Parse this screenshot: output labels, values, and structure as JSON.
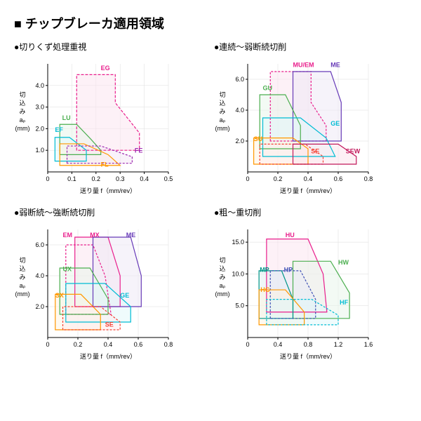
{
  "main_title": "■ チップブレーカ適用領域",
  "xlabel": "送り量 f（mm/rev）",
  "ylabel_lines": [
    "切",
    "込",
    "み",
    "aₚ",
    "(mm)"
  ],
  "charts": [
    {
      "title": "●切りくず処理重視",
      "xlim": [
        0,
        0.5
      ],
      "xticks": [
        0,
        0.1,
        0.2,
        0.3,
        0.4,
        0.5
      ],
      "ylim": [
        0,
        5
      ],
      "yticks": [
        1.0,
        2.0,
        3.0,
        4.0
      ],
      "regions": [
        {
          "label": "EG",
          "color": "#e91e8c",
          "fill": "#fce4ef",
          "dash": "4,2",
          "poly": [
            [
              0.12,
              1.0
            ],
            [
              0.12,
              4.5
            ],
            [
              0.28,
              4.5
            ],
            [
              0.28,
              3.2
            ],
            [
              0.38,
              1.8
            ],
            [
              0.38,
              1.0
            ]
          ],
          "lx": 0.22,
          "ly": 4.7
        },
        {
          "label": "LU",
          "color": "#4caf50",
          "fill": "#e8f5e9",
          "dash": "",
          "poly": [
            [
              0.05,
              0.8
            ],
            [
              0.05,
              2.2
            ],
            [
              0.12,
              2.2
            ],
            [
              0.18,
              1.5
            ],
            [
              0.22,
              1.0
            ],
            [
              0.22,
              0.8
            ]
          ],
          "lx": 0.06,
          "ly": 2.4
        },
        {
          "label": "EF",
          "color": "#00bcd4",
          "fill": "#e0f7fa",
          "dash": "",
          "poly": [
            [
              0.03,
              0.5
            ],
            [
              0.03,
              1.6
            ],
            [
              0.09,
              1.6
            ],
            [
              0.16,
              1.0
            ],
            [
              0.16,
              0.5
            ]
          ],
          "lx": 0.03,
          "ly": 1.85
        },
        {
          "label": "FL",
          "color": "#ff9800",
          "fill": "#fff3e0",
          "dash": "",
          "poly": [
            [
              0.05,
              0.3
            ],
            [
              0.05,
              1.3
            ],
            [
              0.15,
              1.3
            ],
            [
              0.25,
              0.8
            ],
            [
              0.3,
              0.3
            ]
          ],
          "lx": 0.22,
          "ly": 0.25
        },
        {
          "label": "FE",
          "color": "#9c27b0",
          "fill": "#f3e5f5",
          "dash": "3,2",
          "poly": [
            [
              0.08,
              0.4
            ],
            [
              0.08,
              1.2
            ],
            [
              0.22,
              1.2
            ],
            [
              0.35,
              0.7
            ],
            [
              0.35,
              0.4
            ]
          ],
          "lx": 0.36,
          "ly": 0.9
        }
      ]
    },
    {
      "title": "●連続～弱断続切削",
      "xlim": [
        0,
        0.8
      ],
      "xticks": [
        0,
        0.2,
        0.4,
        0.6,
        0.8
      ],
      "ylim": [
        0,
        7
      ],
      "yticks": [
        2.0,
        4.0,
        6.0
      ],
      "regions": [
        {
          "label": "MU/EM",
          "color": "#e91e8c",
          "fill": "#fce4ef",
          "dash": "3,2",
          "poly": [
            [
              0.15,
              2.0
            ],
            [
              0.15,
              6.5
            ],
            [
              0.42,
              6.5
            ],
            [
              0.42,
              4.5
            ],
            [
              0.52,
              3.0
            ],
            [
              0.52,
              2.0
            ]
          ],
          "lx": 0.3,
          "ly": 6.8
        },
        {
          "label": "ME",
          "color": "#673ab7",
          "fill": "#ede7f6",
          "dash": "",
          "poly": [
            [
              0.3,
              2.0
            ],
            [
              0.3,
              6.5
            ],
            [
              0.55,
              6.5
            ],
            [
              0.62,
              4.5
            ],
            [
              0.62,
              2.0
            ]
          ],
          "lx": 0.55,
          "ly": 6.8
        },
        {
          "label": "GU",
          "color": "#4caf50",
          "fill": "#e8f5e9",
          "dash": "",
          "poly": [
            [
              0.08,
              1.5
            ],
            [
              0.08,
              5.0
            ],
            [
              0.25,
              5.0
            ],
            [
              0.35,
              3.0
            ],
            [
              0.35,
              1.5
            ]
          ],
          "lx": 0.1,
          "ly": 5.3
        },
        {
          "label": "GE",
          "color": "#00bcd4",
          "fill": "#e0f7fa",
          "dash": "",
          "poly": [
            [
              0.1,
              1.0
            ],
            [
              0.1,
              3.5
            ],
            [
              0.35,
              3.5
            ],
            [
              0.52,
              2.2
            ],
            [
              0.58,
              1.0
            ]
          ],
          "lx": 0.55,
          "ly": 3.0
        },
        {
          "label": "SU",
          "color": "#ff9800",
          "fill": "#fff3e0",
          "dash": "",
          "poly": [
            [
              0.04,
              0.5
            ],
            [
              0.04,
              2.2
            ],
            [
              0.3,
              2.2
            ],
            [
              0.4,
              1.5
            ],
            [
              0.4,
              0.5
            ]
          ],
          "lx": 0.04,
          "ly": 2.0
        },
        {
          "label": "SE",
          "color": "#f44336",
          "fill": "#ffebee",
          "dash": "3,2",
          "poly": [
            [
              0.08,
              0.5
            ],
            [
              0.08,
              1.8
            ],
            [
              0.38,
              1.8
            ],
            [
              0.5,
              1.0
            ],
            [
              0.5,
              0.5
            ]
          ],
          "lx": 0.42,
          "ly": 1.2
        },
        {
          "label": "SEW",
          "color": "#c2185b",
          "fill": "#fce4ec",
          "dash": "",
          "poly": [
            [
              0.3,
              0.5
            ],
            [
              0.3,
              1.8
            ],
            [
              0.6,
              1.8
            ],
            [
              0.72,
              1.0
            ],
            [
              0.72,
              0.5
            ]
          ],
          "lx": 0.65,
          "ly": 1.2
        }
      ]
    },
    {
      "title": "●弱断続～強断続切削",
      "xlim": [
        0,
        0.8
      ],
      "xticks": [
        0,
        0.2,
        0.4,
        0.6,
        0.8
      ],
      "ylim": [
        0,
        7
      ],
      "yticks": [
        2.0,
        4.0,
        6.0
      ],
      "regions": [
        {
          "label": "EM",
          "color": "#e91e8c",
          "fill": "none",
          "dash": "3,2",
          "poly": [
            [
              0.12,
              1.5
            ],
            [
              0.12,
              6.0
            ],
            [
              0.3,
              6.0
            ],
            [
              0.38,
              4.0
            ],
            [
              0.42,
              1.5
            ]
          ],
          "lx": 0.1,
          "ly": 6.5
        },
        {
          "label": "MX",
          "color": "#e91e8c",
          "fill": "#fce4ef",
          "dash": "",
          "poly": [
            [
              0.18,
              2.0
            ],
            [
              0.18,
              6.5
            ],
            [
              0.4,
              6.5
            ],
            [
              0.48,
              4.0
            ],
            [
              0.48,
              2.0
            ]
          ],
          "lx": 0.28,
          "ly": 6.5
        },
        {
          "label": "ME",
          "color": "#673ab7",
          "fill": "#ede7f6",
          "dash": "",
          "poly": [
            [
              0.3,
              2.0
            ],
            [
              0.3,
              6.5
            ],
            [
              0.55,
              6.5
            ],
            [
              0.62,
              4.0
            ],
            [
              0.62,
              2.0
            ]
          ],
          "lx": 0.52,
          "ly": 6.5
        },
        {
          "label": "UX",
          "color": "#4caf50",
          "fill": "#e8f5e9",
          "dash": "",
          "poly": [
            [
              0.08,
              1.5
            ],
            [
              0.08,
              4.5
            ],
            [
              0.28,
              4.5
            ],
            [
              0.4,
              2.5
            ],
            [
              0.4,
              1.5
            ]
          ],
          "lx": 0.1,
          "ly": 4.3
        },
        {
          "label": "GE",
          "color": "#00bcd4",
          "fill": "#e0f7fa",
          "dash": "",
          "poly": [
            [
              0.12,
              1.0
            ],
            [
              0.12,
              3.5
            ],
            [
              0.38,
              3.5
            ],
            [
              0.55,
              2.0
            ],
            [
              0.55,
              1.0
            ]
          ],
          "lx": 0.48,
          "ly": 2.6
        },
        {
          "label": "SX",
          "color": "#ff9800",
          "fill": "#fff3e0",
          "dash": "",
          "poly": [
            [
              0.05,
              0.5
            ],
            [
              0.05,
              2.8
            ],
            [
              0.22,
              2.8
            ],
            [
              0.35,
              1.5
            ],
            [
              0.35,
              0.5
            ]
          ],
          "lx": 0.05,
          "ly": 2.6
        },
        {
          "label": "SE",
          "color": "#f44336",
          "fill": "#ffebee",
          "dash": "3,2",
          "poly": [
            [
              0.1,
              0.5
            ],
            [
              0.1,
              2.0
            ],
            [
              0.35,
              2.0
            ],
            [
              0.48,
              1.0
            ],
            [
              0.48,
              0.5
            ]
          ],
          "lx": 0.38,
          "ly": 0.7
        }
      ]
    },
    {
      "title": "●粗～重切削",
      "xlim": [
        0,
        1.6
      ],
      "xticks": [
        0,
        0.4,
        0.8,
        1.2,
        1.6
      ],
      "ylim": [
        0,
        17
      ],
      "yticks": [
        5.0,
        10.0,
        15.0
      ],
      "regions": [
        {
          "label": "HU",
          "color": "#e91e8c",
          "fill": "#fce4ef",
          "dash": "",
          "poly": [
            [
              0.25,
              4
            ],
            [
              0.25,
              15.5
            ],
            [
              0.8,
              15.5
            ],
            [
              1.0,
              10
            ],
            [
              1.05,
              4
            ]
          ],
          "lx": 0.5,
          "ly": 15.8
        },
        {
          "label": "HW",
          "color": "#4caf50",
          "fill": "#e8f5e9",
          "dash": "",
          "poly": [
            [
              0.6,
              3
            ],
            [
              0.6,
              12
            ],
            [
              1.1,
              12
            ],
            [
              1.35,
              7
            ],
            [
              1.35,
              3
            ]
          ],
          "lx": 1.2,
          "ly": 11.5
        },
        {
          "label": "MP",
          "color": "#009688",
          "fill": "#e0f2f1",
          "dash": "",
          "poly": [
            [
              0.15,
              3
            ],
            [
              0.15,
              10.5
            ],
            [
              0.45,
              10.5
            ],
            [
              0.6,
              6
            ],
            [
              0.6,
              3
            ]
          ],
          "lx": 0.16,
          "ly": 10.3
        },
        {
          "label": "HP",
          "color": "#3f51b5",
          "fill": "#e8eaf6",
          "dash": "3,2",
          "poly": [
            [
              0.3,
              3
            ],
            [
              0.3,
              10.5
            ],
            [
              0.7,
              10.5
            ],
            [
              0.9,
              6
            ],
            [
              0.9,
              3
            ]
          ],
          "lx": 0.48,
          "ly": 10.3
        },
        {
          "label": "HG",
          "color": "#ff9800",
          "fill": "#fff3e0",
          "dash": "",
          "poly": [
            [
              0.15,
              2
            ],
            [
              0.15,
              7.5
            ],
            [
              0.5,
              7.5
            ],
            [
              0.75,
              4
            ],
            [
              0.75,
              2
            ]
          ],
          "lx": 0.17,
          "ly": 7.2
        },
        {
          "label": "HF",
          "color": "#00bcd4",
          "fill": "#e0f7fa",
          "dash": "3,2",
          "poly": [
            [
              0.25,
              2
            ],
            [
              0.25,
              6
            ],
            [
              0.85,
              6
            ],
            [
              1.2,
              3.5
            ],
            [
              1.2,
              2
            ]
          ],
          "lx": 1.22,
          "ly": 5.2
        }
      ]
    }
  ]
}
